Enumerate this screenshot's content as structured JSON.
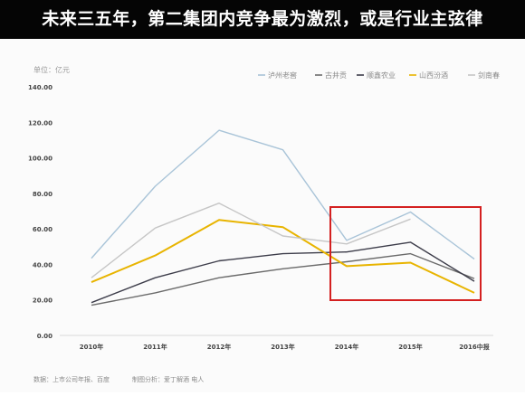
{
  "banner": {
    "title": "未来三五年，第二集团内竞争最为激烈，或是行业主弦律"
  },
  "chart_data": {
    "type": "line",
    "unit_label": "单位：亿元",
    "categories": [
      "2010年",
      "2011年",
      "2012年",
      "2013年",
      "2014年",
      "2015年",
      "2016中报"
    ],
    "ylim": [
      0,
      140
    ],
    "y_ticks": [
      0,
      20,
      40,
      60,
      80,
      100,
      120,
      140
    ],
    "y_tick_labels": [
      "0.00",
      "20.00",
      "40.00",
      "60.00",
      "80.00",
      "100.00",
      "120.00",
      "140.00"
    ],
    "grid": false,
    "legend_position": "top-right",
    "series": [
      {
        "name": "泸州老窖",
        "color": "#a9c4d8",
        "values": [
          43.5,
          84,
          115.5,
          104.5,
          53.5,
          69.5,
          43
        ]
      },
      {
        "name": "古井贡",
        "color": "#6b6b6b",
        "values": [
          17,
          24,
          32.5,
          37.5,
          41.5,
          46,
          32
        ]
      },
      {
        "name": "顺鑫农业",
        "color": "#3d3d4a",
        "values": [
          18.5,
          32.5,
          42,
          46,
          47,
          52.5,
          30.5
        ]
      },
      {
        "name": "山西汾酒",
        "color": "#e8b400",
        "values": [
          30,
          45,
          65,
          61,
          39,
          41,
          24
        ]
      },
      {
        "name": "剑南春",
        "color": "#c6c6c6",
        "values": [
          32.5,
          60.5,
          74.5,
          56,
          51.5,
          65.5,
          null
        ]
      }
    ],
    "highlight": {
      "from_category": "2014年",
      "to_category": "2016中报",
      "color": "#d42020"
    },
    "footer": {
      "source": "数据：上市公司年报、百度",
      "analysis": "制图分析：爱丁解酒  电人"
    }
  }
}
